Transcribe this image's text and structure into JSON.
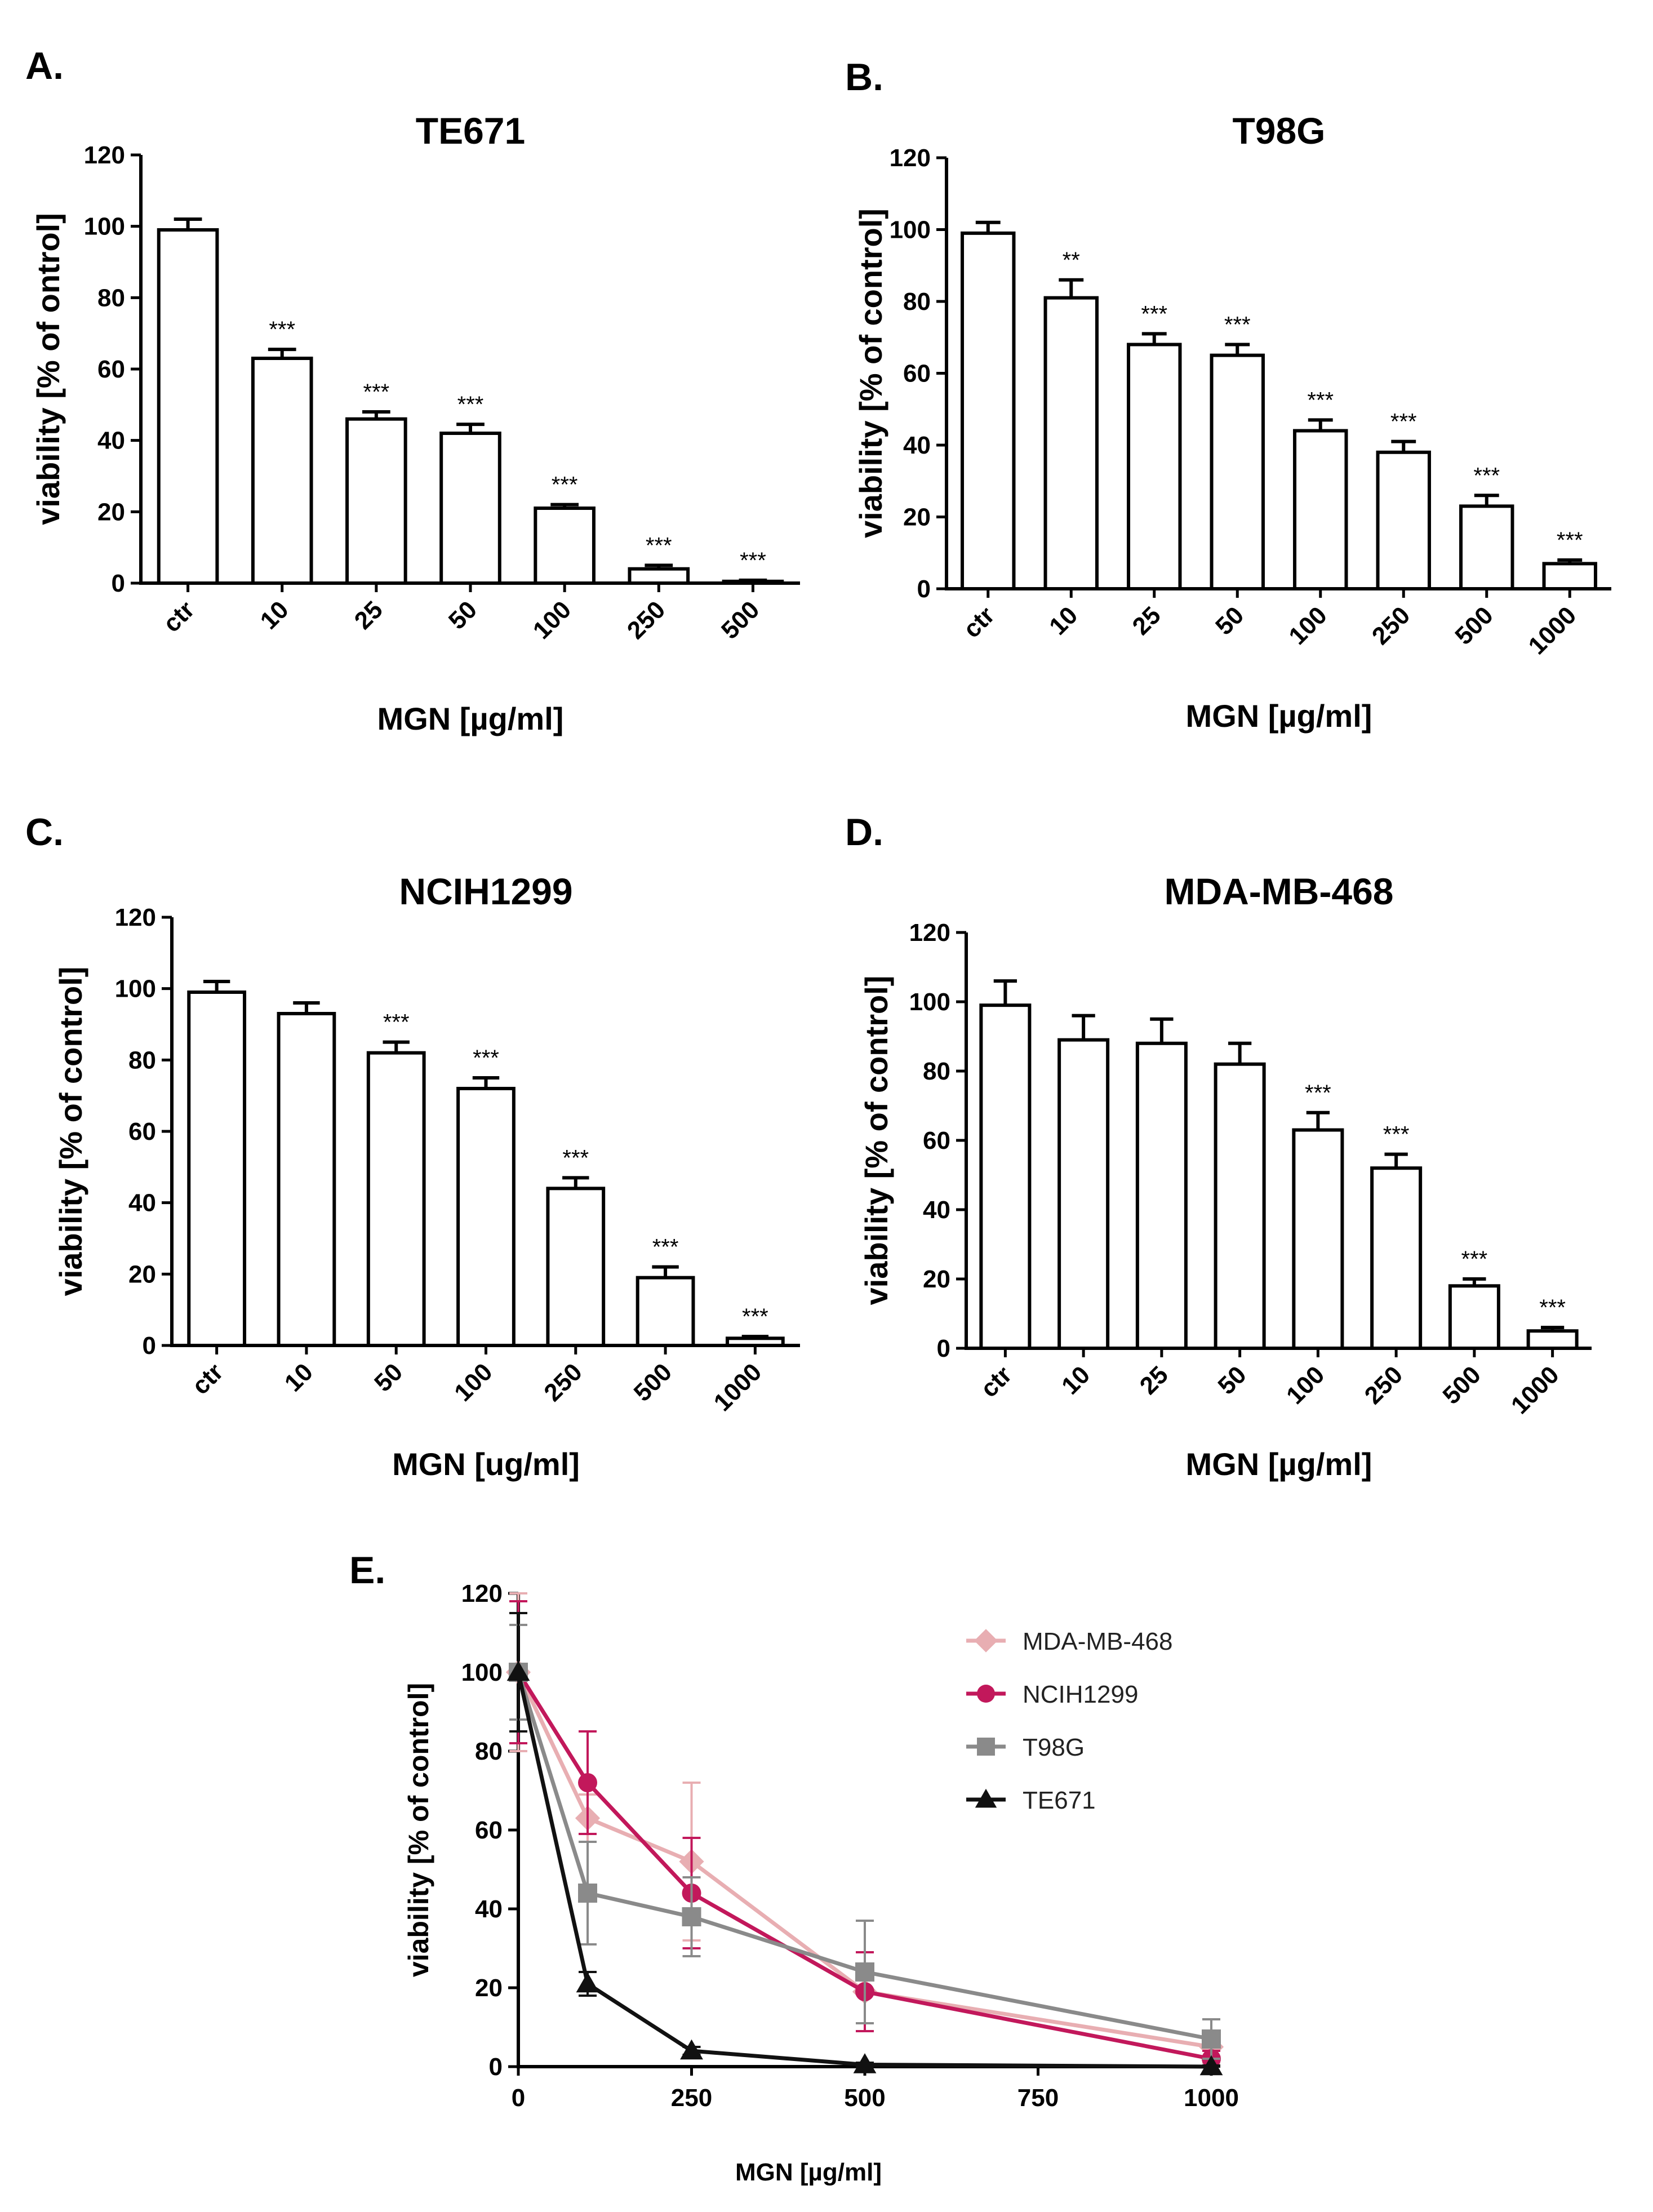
{
  "panels": {
    "A": {
      "letter": "A."
    },
    "B": {
      "letter": "B."
    },
    "C": {
      "letter": "C."
    },
    "D": {
      "letter": "D."
    },
    "E": {
      "letter": "E."
    }
  },
  "chart_data": [
    {
      "id": "A",
      "type": "bar",
      "title": "TE671",
      "xlabel": "MGN [µg/ml]",
      "ylabel": "viability [% of ontrol]",
      "ylim": [
        0,
        120
      ],
      "yticks": [
        0,
        20,
        40,
        60,
        80,
        100,
        120
      ],
      "categories": [
        "ctr",
        "10",
        "25",
        "50",
        "100",
        "250",
        "500"
      ],
      "values": [
        99,
        63,
        46,
        42,
        21,
        4,
        0.5
      ],
      "errors": [
        3,
        2.5,
        2,
        2.5,
        1,
        1,
        0.3
      ],
      "significance": [
        "",
        "***",
        "***",
        "***",
        "***",
        "***",
        "***"
      ]
    },
    {
      "id": "B",
      "type": "bar",
      "title": "T98G",
      "xlabel": "MGN [µg/ml]",
      "ylabel": "viability [% of control]",
      "ylim": [
        0,
        120
      ],
      "yticks": [
        0,
        20,
        40,
        60,
        80,
        100,
        120
      ],
      "categories": [
        "ctr",
        "10",
        "25",
        "50",
        "100",
        "250",
        "500",
        "1000"
      ],
      "values": [
        99,
        81,
        68,
        65,
        44,
        38,
        23,
        7
      ],
      "errors": [
        3,
        5,
        3,
        3,
        3,
        3,
        3,
        1
      ],
      "significance": [
        "",
        "**",
        "***",
        "***",
        "***",
        "***",
        "***",
        "***"
      ]
    },
    {
      "id": "C",
      "type": "bar",
      "title": "NCIH1299",
      "xlabel": "MGN [ug/ml]",
      "ylabel": "viability [% of control]",
      "ylim": [
        0,
        120
      ],
      "yticks": [
        0,
        20,
        40,
        60,
        80,
        100,
        120
      ],
      "categories": [
        "ctr",
        "10",
        "50",
        "100",
        "250",
        "500",
        "1000"
      ],
      "values": [
        99,
        93,
        82,
        72,
        44,
        19,
        2
      ],
      "errors": [
        3,
        3,
        3,
        3,
        3,
        3,
        0.5
      ],
      "significance": [
        "",
        "",
        "***",
        "***",
        "***",
        "***",
        "***"
      ]
    },
    {
      "id": "D",
      "type": "bar",
      "title": "MDA-MB-468",
      "xlabel": "MGN [µg/ml]",
      "ylabel": "viability [% of control]",
      "ylim": [
        0,
        120
      ],
      "yticks": [
        0,
        20,
        40,
        60,
        80,
        100,
        120
      ],
      "categories": [
        "ctr",
        "10",
        "25",
        "50",
        "100",
        "250",
        "500",
        "1000"
      ],
      "values": [
        99,
        89,
        88,
        82,
        63,
        52,
        18,
        5
      ],
      "errors": [
        7,
        7,
        7,
        6,
        5,
        4,
        2,
        1
      ],
      "significance": [
        "",
        "",
        "",
        "",
        "***",
        "***",
        "***",
        "***"
      ]
    },
    {
      "id": "E",
      "type": "line",
      "title": "",
      "xlabel": "MGN [µg/ml]",
      "ylabel": "viability [% of control]",
      "xlim": [
        0,
        1000
      ],
      "ylim": [
        0,
        120
      ],
      "xticks": [
        0,
        250,
        500,
        750,
        1000
      ],
      "yticks": [
        0,
        20,
        40,
        60,
        80,
        100,
        120
      ],
      "series": [
        {
          "name": "MDA-MB-468",
          "color": "#e8aeb2",
          "marker": "diamond",
          "x": [
            0,
            100,
            250,
            500,
            1000
          ],
          "y": [
            100,
            63,
            52,
            19,
            5
          ],
          "err": [
            20,
            6,
            20,
            10,
            4
          ]
        },
        {
          "name": "NCIH1299",
          "color": "#c2185b",
          "marker": "circle",
          "x": [
            0,
            100,
            250,
            500,
            1000
          ],
          "y": [
            100,
            72,
            44,
            19,
            2
          ],
          "err": [
            18,
            13,
            14,
            10,
            2
          ]
        },
        {
          "name": "T98G",
          "color": "#8a8a8a",
          "marker": "square",
          "x": [
            0,
            100,
            250,
            500,
            1000
          ],
          "y": [
            100,
            44,
            38,
            24,
            7
          ],
          "err": [
            12,
            13,
            10,
            13,
            5
          ]
        },
        {
          "name": "TE671",
          "color": "#111111",
          "marker": "triangle",
          "x": [
            0,
            100,
            250,
            500,
            1000
          ],
          "y": [
            100,
            21,
            4,
            0.5,
            0
          ],
          "err": [
            15,
            3,
            1,
            0.5,
            0.3
          ]
        }
      ]
    }
  ]
}
